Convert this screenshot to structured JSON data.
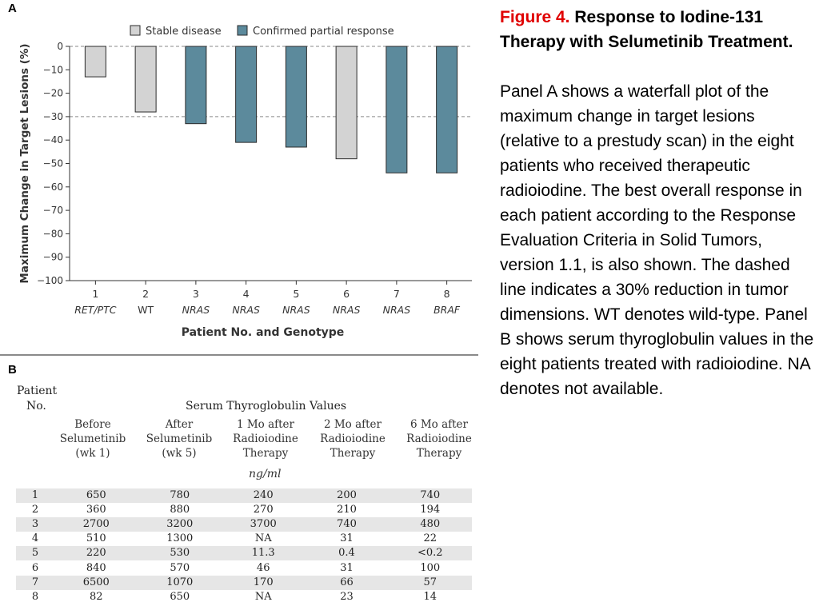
{
  "panel_a_label": "A",
  "panel_b_label": "B",
  "chart_data": {
    "type": "bar",
    "ylabel": "Maximum Change in Target Lesions (%)",
    "xlabel": "Patient No. and Genotype",
    "ylim": [
      -100,
      0
    ],
    "yticks": [
      0,
      -10,
      -20,
      -30,
      -40,
      -50,
      -60,
      -70,
      -80,
      -90,
      -100
    ],
    "ytick_labels": [
      "0",
      "−10",
      "−20",
      "−30",
      "−40",
      "−50",
      "−60",
      "−70",
      "−80",
      "−90",
      "−100"
    ],
    "reference_lines": [
      0,
      -30
    ],
    "legend_position": "top",
    "legend": [
      {
        "key": "stable",
        "label": "Stable disease",
        "color": "#d3d3d3"
      },
      {
        "key": "partial",
        "label": "Confirmed partial response",
        "color": "#5c8a9c"
      }
    ],
    "categories": [
      "1",
      "2",
      "3",
      "4",
      "5",
      "6",
      "7",
      "8"
    ],
    "genotypes": [
      "RET/PTC",
      "WT",
      "NRAS",
      "NRAS",
      "NRAS",
      "NRAS",
      "NRAS",
      "BRAF"
    ],
    "genotype_italic": [
      true,
      false,
      true,
      true,
      true,
      true,
      true,
      true
    ],
    "values": [
      -13,
      -28,
      -33,
      -41,
      -43,
      -48,
      -54,
      -54
    ],
    "response": [
      "stable",
      "stable",
      "partial",
      "partial",
      "partial",
      "stable",
      "partial",
      "partial"
    ]
  },
  "table_b": {
    "patient_header": [
      "Patient",
      "No."
    ],
    "group_header": "Serum Thyroglobulin Values",
    "columns": [
      "Before\nSelumetinib\n(wk 1)",
      "After\nSelumetinib\n(wk 5)",
      "1 Mo after\nRadioiodine\nTherapy",
      "2 Mo after\nRadioiodine\nTherapy",
      "6 Mo after\nRadioiodine\nTherapy"
    ],
    "units": "ng/ml",
    "rows": [
      [
        "1",
        "650",
        "780",
        "240",
        "200",
        "740"
      ],
      [
        "2",
        "360",
        "880",
        "270",
        "210",
        "194"
      ],
      [
        "3",
        "2700",
        "3200",
        "3700",
        "740",
        "480"
      ],
      [
        "4",
        "510",
        "1300",
        "NA",
        "31",
        "22"
      ],
      [
        "5",
        "220",
        "530",
        "11.3",
        "0.4",
        "<0.2"
      ],
      [
        "6",
        "840",
        "570",
        "46",
        "31",
        "100"
      ],
      [
        "7",
        "6500",
        "1070",
        "170",
        "66",
        "57"
      ],
      [
        "8",
        "82",
        "650",
        "NA",
        "23",
        "14"
      ]
    ]
  },
  "caption": {
    "label": "Figure 4.",
    "title": "Response to Iodine-131 Therapy with Selumetinib Treatment.",
    "body": "Panel A shows a waterfall plot of the maximum change in target lesions (relative to a prestudy scan) in the eight patients who received therapeutic radioiodine. The best overall response in each patient according to the Response Evaluation Criteria in Solid Tumors, version 1.1, is also shown. The dashed line indicates a 30% reduction in tumor dimensions. WT denotes wild-type. Panel B shows serum thyroglobulin values in the eight patients treated with radioiodine. NA denotes not available."
  }
}
